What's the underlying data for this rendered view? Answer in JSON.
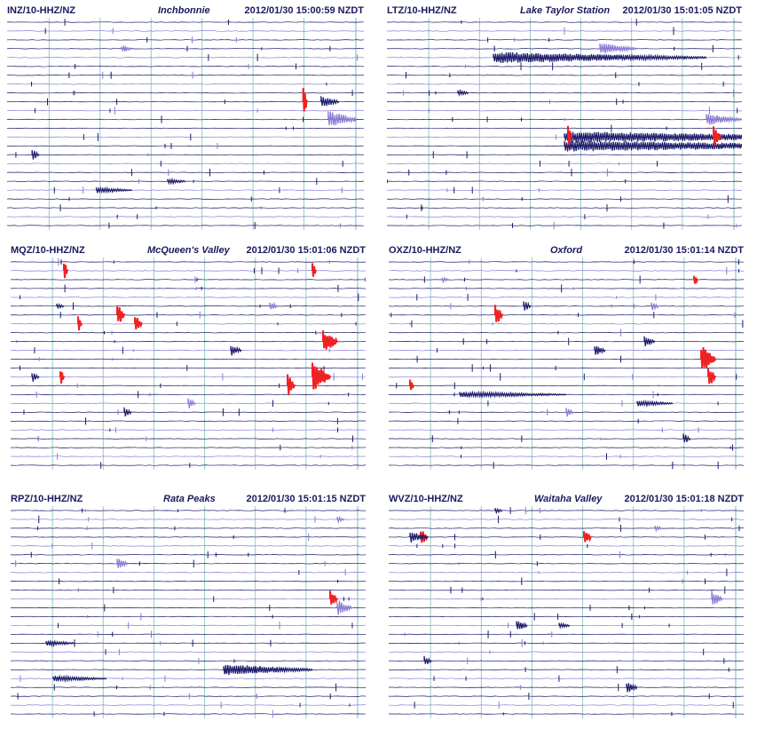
{
  "colors": {
    "trace_dark": "#1b1b6b",
    "trace_light": "#8c7ad6",
    "trace_red": "#ee2222",
    "grid_line": "#8fc7c0",
    "header_text": "#1a1a5e"
  },
  "panels": [
    {
      "id": "inz",
      "station_code": "INZ/10-HHZ/NZ",
      "station_name": "Inchbonnie",
      "timestamp": "2012/01/30 15:00:59 NZDT",
      "events": [
        {
          "row": 3,
          "pos": 0.32,
          "amp": 1,
          "color": "light",
          "len": 0.03
        },
        {
          "row": 9,
          "pos": 0.83,
          "amp": 6,
          "color": "red",
          "len": 0.01
        },
        {
          "row": 9,
          "pos": 0.88,
          "amp": 2,
          "color": "dark",
          "len": 0.05
        },
        {
          "row": 11,
          "pos": 0.9,
          "amp": 3,
          "color": "light",
          "len": 0.08
        },
        {
          "row": 15,
          "pos": 0.07,
          "amp": 2,
          "color": "dark",
          "len": 0.02
        },
        {
          "row": 18,
          "pos": 0.45,
          "amp": 1,
          "color": "dark",
          "len": 0.05
        },
        {
          "row": 19,
          "pos": 0.25,
          "amp": 1,
          "color": "dark",
          "len": 0.1
        }
      ]
    },
    {
      "id": "ltz",
      "station_code": "LTZ/10-HHZ/NZ",
      "station_name": "Lake Taylor Station",
      "timestamp": "2012/01/30 15:01:05 NZDT",
      "events": [
        {
          "row": 4,
          "pos": 0.3,
          "amp": 2,
          "color": "dark",
          "len": 0.6
        },
        {
          "row": 3,
          "pos": 0.6,
          "amp": 2,
          "color": "light",
          "len": 0.1
        },
        {
          "row": 8,
          "pos": 0.2,
          "amp": 1,
          "color": "dark",
          "len": 0.03
        },
        {
          "row": 11,
          "pos": 0.9,
          "amp": 2,
          "color": "light",
          "len": 0.1
        },
        {
          "row": 13,
          "pos": 0.5,
          "amp": 2,
          "color": "dark",
          "len": 0.9
        },
        {
          "row": 14,
          "pos": 0.5,
          "amp": 2,
          "color": "dark",
          "len": 0.9
        },
        {
          "row": 13,
          "pos": 0.51,
          "amp": 4,
          "color": "red",
          "len": 0.01
        },
        {
          "row": 13,
          "pos": 0.92,
          "amp": 4,
          "color": "red",
          "len": 0.02
        }
      ]
    },
    {
      "id": "mqz",
      "station_code": "MQZ/10-HHZ/NZ",
      "station_name": "McQueen's Valley",
      "timestamp": "2012/01/30 15:01:06 NZDT",
      "events": [
        {
          "row": 1,
          "pos": 0.15,
          "amp": 4,
          "color": "red",
          "len": 0.01
        },
        {
          "row": 1,
          "pos": 0.85,
          "amp": 3,
          "color": "red",
          "len": 0.01
        },
        {
          "row": 5,
          "pos": 0.13,
          "amp": 1,
          "color": "dark",
          "len": 0.02
        },
        {
          "row": 6,
          "pos": 0.3,
          "amp": 4,
          "color": "red",
          "len": 0.02
        },
        {
          "row": 7,
          "pos": 0.35,
          "amp": 3,
          "color": "red",
          "len": 0.02
        },
        {
          "row": 7,
          "pos": 0.19,
          "amp": 3,
          "color": "red",
          "len": 0.01
        },
        {
          "row": 5,
          "pos": 0.73,
          "amp": 2,
          "color": "light",
          "len": 0.02
        },
        {
          "row": 9,
          "pos": 0.88,
          "amp": 4,
          "color": "red",
          "len": 0.04
        },
        {
          "row": 10,
          "pos": 0.62,
          "amp": 2,
          "color": "dark",
          "len": 0.03
        },
        {
          "row": 13,
          "pos": 0.85,
          "amp": 5,
          "color": "red",
          "len": 0.05
        },
        {
          "row": 14,
          "pos": 0.78,
          "amp": 4,
          "color": "red",
          "len": 0.02
        },
        {
          "row": 13,
          "pos": 0.14,
          "amp": 3,
          "color": "red",
          "len": 0.01
        },
        {
          "row": 13,
          "pos": 0.06,
          "amp": 2,
          "color": "dark",
          "len": 0.02
        },
        {
          "row": 16,
          "pos": 0.5,
          "amp": 2,
          "color": "light",
          "len": 0.02
        },
        {
          "row": 17,
          "pos": 0.32,
          "amp": 2,
          "color": "dark",
          "len": 0.02
        }
      ]
    },
    {
      "id": "oxz",
      "station_code": "OXZ/10-HHZ/NZ",
      "station_name": "Oxford",
      "timestamp": "2012/01/30 15:01:14 NZDT",
      "events": [
        {
          "row": 2,
          "pos": 0.15,
          "amp": 1,
          "color": "light",
          "len": 0.02
        },
        {
          "row": 2,
          "pos": 0.86,
          "amp": 2,
          "color": "red",
          "len": 0.01
        },
        {
          "row": 6,
          "pos": 0.3,
          "amp": 4,
          "color": "red",
          "len": 0.02
        },
        {
          "row": 5,
          "pos": 0.38,
          "amp": 2,
          "color": "dark",
          "len": 0.02
        },
        {
          "row": 5,
          "pos": 0.74,
          "amp": 2,
          "color": "light",
          "len": 0.02
        },
        {
          "row": 9,
          "pos": 0.72,
          "amp": 2,
          "color": "dark",
          "len": 0.03
        },
        {
          "row": 10,
          "pos": 0.58,
          "amp": 2,
          "color": "dark",
          "len": 0.03
        },
        {
          "row": 11,
          "pos": 0.88,
          "amp": 5,
          "color": "red",
          "len": 0.04
        },
        {
          "row": 13,
          "pos": 0.9,
          "amp": 4,
          "color": "red",
          "len": 0.02
        },
        {
          "row": 14,
          "pos": 0.06,
          "amp": 3,
          "color": "red",
          "len": 0.01
        },
        {
          "row": 15,
          "pos": 0.2,
          "amp": 1,
          "color": "dark",
          "len": 0.3
        },
        {
          "row": 16,
          "pos": 0.7,
          "amp": 1,
          "color": "dark",
          "len": 0.1
        },
        {
          "row": 17,
          "pos": 0.5,
          "amp": 2,
          "color": "light",
          "len": 0.02
        },
        {
          "row": 20,
          "pos": 0.83,
          "amp": 2,
          "color": "dark",
          "len": 0.02
        }
      ]
    },
    {
      "id": "rpz",
      "station_code": "RPZ/10-HHZ/NZ",
      "station_name": "Rata Peaks",
      "timestamp": "2012/01/30 15:01:15 NZDT",
      "events": [
        {
          "row": 1,
          "pos": 0.92,
          "amp": 1,
          "color": "light",
          "len": 0.02
        },
        {
          "row": 6,
          "pos": 0.3,
          "amp": 2,
          "color": "light",
          "len": 0.03
        },
        {
          "row": 10,
          "pos": 0.9,
          "amp": 3,
          "color": "red",
          "len": 0.02
        },
        {
          "row": 11,
          "pos": 0.92,
          "amp": 3,
          "color": "light",
          "len": 0.04
        },
        {
          "row": 15,
          "pos": 0.1,
          "amp": 1,
          "color": "dark",
          "len": 0.08
        },
        {
          "row": 18,
          "pos": 0.6,
          "amp": 2,
          "color": "dark",
          "len": 0.25
        },
        {
          "row": 19,
          "pos": 0.12,
          "amp": 1,
          "color": "dark",
          "len": 0.15
        }
      ]
    },
    {
      "id": "wvz",
      "station_code": "WVZ/10-HHZ/NZ",
      "station_name": "Waitaha Valley",
      "timestamp": "2012/01/30 15:01:18 NZDT",
      "events": [
        {
          "row": 0,
          "pos": 0.3,
          "amp": 1,
          "color": "dark",
          "len": 0.02
        },
        {
          "row": 3,
          "pos": 0.09,
          "amp": 3,
          "color": "red",
          "len": 0.02
        },
        {
          "row": 3,
          "pos": 0.55,
          "amp": 3,
          "color": "red",
          "len": 0.02
        },
        {
          "row": 3,
          "pos": 0.06,
          "amp": 2,
          "color": "dark",
          "len": 0.05
        },
        {
          "row": 2,
          "pos": 0.75,
          "amp": 1,
          "color": "light",
          "len": 0.02
        },
        {
          "row": 10,
          "pos": 0.91,
          "amp": 3,
          "color": "light",
          "len": 0.03
        },
        {
          "row": 13,
          "pos": 0.36,
          "amp": 2,
          "color": "dark",
          "len": 0.03
        },
        {
          "row": 13,
          "pos": 0.48,
          "amp": 1,
          "color": "dark",
          "len": 0.03
        },
        {
          "row": 17,
          "pos": 0.1,
          "amp": 2,
          "color": "dark",
          "len": 0.02
        },
        {
          "row": 20,
          "pos": 0.67,
          "amp": 2,
          "color": "dark",
          "len": 0.03
        }
      ]
    }
  ]
}
